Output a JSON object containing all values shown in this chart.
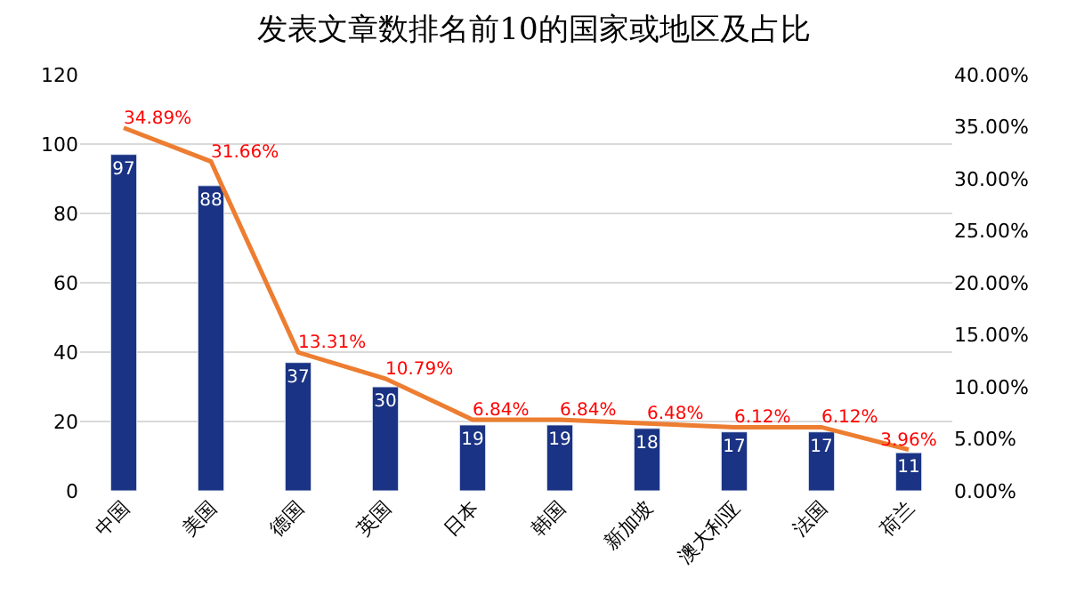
{
  "chart_data": {
    "type": "bar",
    "title": "发表文章数排名前10的国家或地区及占比",
    "categories": [
      "中国",
      "美国",
      "德国",
      "英国",
      "日本",
      "韩国",
      "新加坡",
      "澳大利亚",
      "法国",
      "荷兰"
    ],
    "series": [
      {
        "color": "#1a3384",
        "values": [
          97,
          88,
          37,
          30,
          19,
          19,
          18,
          17,
          17,
          11
        ]
      },
      {
        "type": "line",
        "axis": "y2",
        "color": "#ed7d31",
        "values": [
          34.89,
          31.66,
          13.31,
          10.79,
          6.84,
          6.84,
          6.48,
          6.12,
          6.12,
          3.96
        ],
        "value_labels": [
          "34.89%",
          "31.66%",
          "13.31%",
          "10.79%",
          "6.84%",
          "6.84%",
          "6.48%",
          "6.12%",
          "6.12%",
          "3.96%"
        ]
      }
    ],
    "data_labels": true,
    "ylim": [
      0,
      120
    ],
    "yticks": [
      0,
      20,
      40,
      60,
      80,
      100,
      120
    ],
    "y2lim": [
      0,
      40
    ],
    "y2ticks": [
      {
        "value": 0,
        "label": "0.00%"
      },
      {
        "value": 5,
        "label": "5.00%"
      },
      {
        "value": 10,
        "label": "10.00%"
      },
      {
        "value": 15,
        "label": "15.00%"
      },
      {
        "value": 20,
        "label": "20.00%"
      },
      {
        "value": 25,
        "label": "25.00%"
      },
      {
        "value": 30,
        "label": "30.00%"
      },
      {
        "value": 35,
        "label": "35.00%"
      },
      {
        "value": 40,
        "label": "40.00%"
      }
    ],
    "grid": "y",
    "legend": false,
    "marker": "none"
  }
}
